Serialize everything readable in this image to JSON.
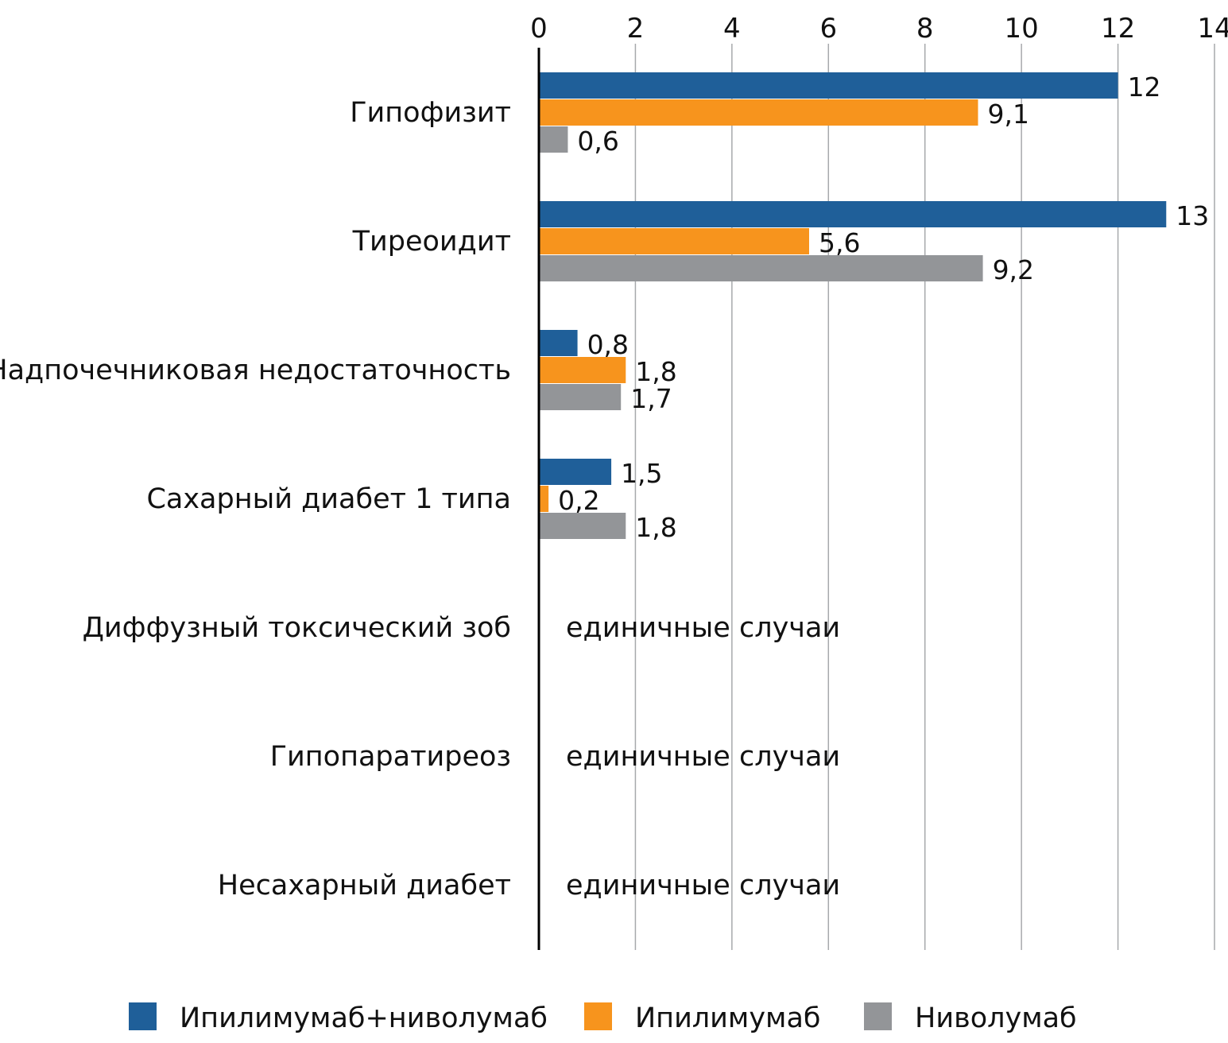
{
  "chart_data": {
    "type": "bar",
    "orientation": "horizontal",
    "title": "",
    "xlabel": "",
    "ylabel": "",
    "xlim": [
      0,
      14
    ],
    "x_ticks": [
      0,
      2,
      4,
      6,
      8,
      10,
      12,
      14
    ],
    "x_tick_labels": [
      "0",
      "2",
      "4",
      "6",
      "8",
      "10",
      "12",
      "14"
    ],
    "grid": "vertical",
    "legend_position": "bottom",
    "categories": [
      "Гипофизит",
      "Тиреоидит",
      "Надпочечниковая недостаточность",
      "Сахарный диабет 1 типа",
      "Диффузный токсический зоб",
      "Гипопаратиреоз",
      "Несахарный диабет"
    ],
    "series": [
      {
        "name": "Ипилимумаб+ниволумаб",
        "color": "#1f5f99",
        "values": [
          12,
          13,
          0.8,
          1.5,
          null,
          null,
          null
        ],
        "labels": [
          "12",
          "13",
          "0,8",
          "1,5",
          null,
          null,
          null
        ]
      },
      {
        "name": "Ипилимумаб",
        "color": "#f7941d",
        "values": [
          9.1,
          5.6,
          1.8,
          0.2,
          null,
          null,
          null
        ],
        "labels": [
          "9,1",
          "5,6",
          "1,8",
          "0,2",
          null,
          null,
          null
        ]
      },
      {
        "name": "Ниволумаб",
        "color": "#939598",
        "values": [
          0.6,
          9.2,
          1.7,
          1.8,
          null,
          null,
          null
        ],
        "labels": [
          "0,6",
          "9,2",
          "1,7",
          "1,8",
          null,
          null,
          null
        ]
      }
    ],
    "annotations": [
      null,
      null,
      null,
      null,
      "единичные случаи",
      "единичные случаи",
      "единичные случаи"
    ]
  }
}
